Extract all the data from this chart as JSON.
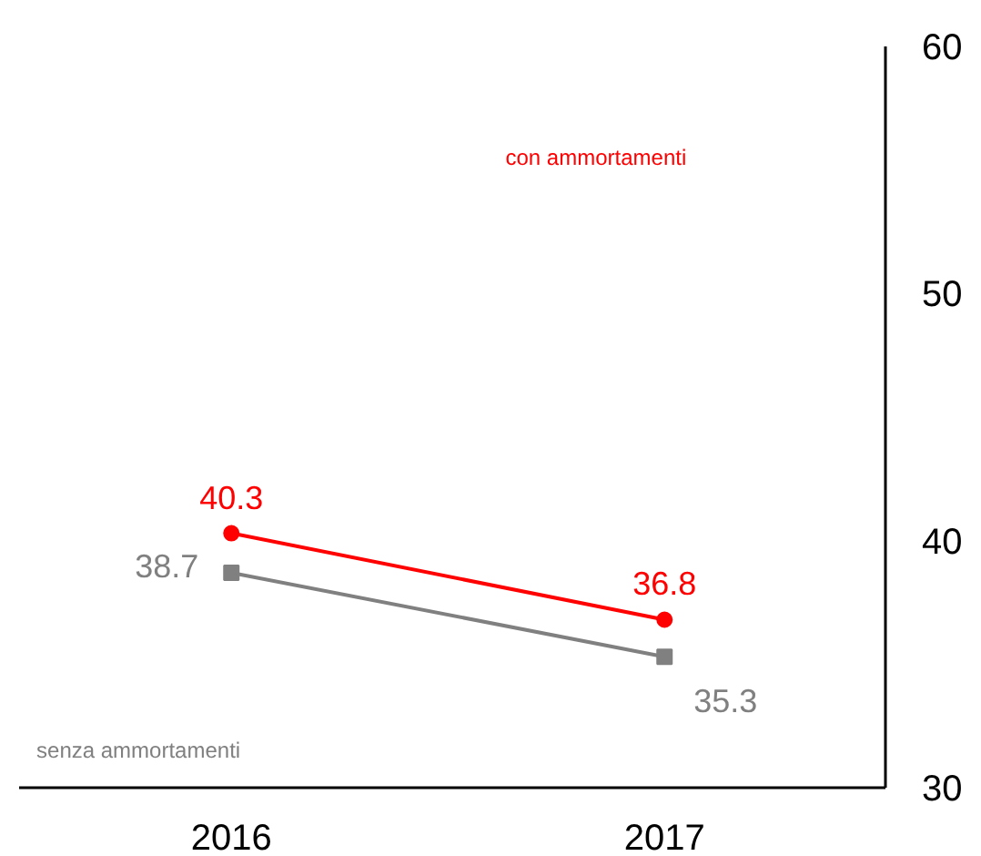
{
  "chart_data": {
    "type": "line",
    "categories": [
      "2016",
      "2017"
    ],
    "ylim": [
      30,
      60
    ],
    "yticks": [
      30,
      40,
      50,
      60
    ],
    "grid": false,
    "data_labels": true,
    "series": [
      {
        "name": "con ammortamenti",
        "color": "#ff0000",
        "values": [
          40.3,
          36.8
        ],
        "marker": "circle"
      },
      {
        "name": "senza ammortamenti",
        "color": "#808080",
        "values": [
          38.7,
          35.3
        ],
        "marker": "square"
      }
    ]
  }
}
